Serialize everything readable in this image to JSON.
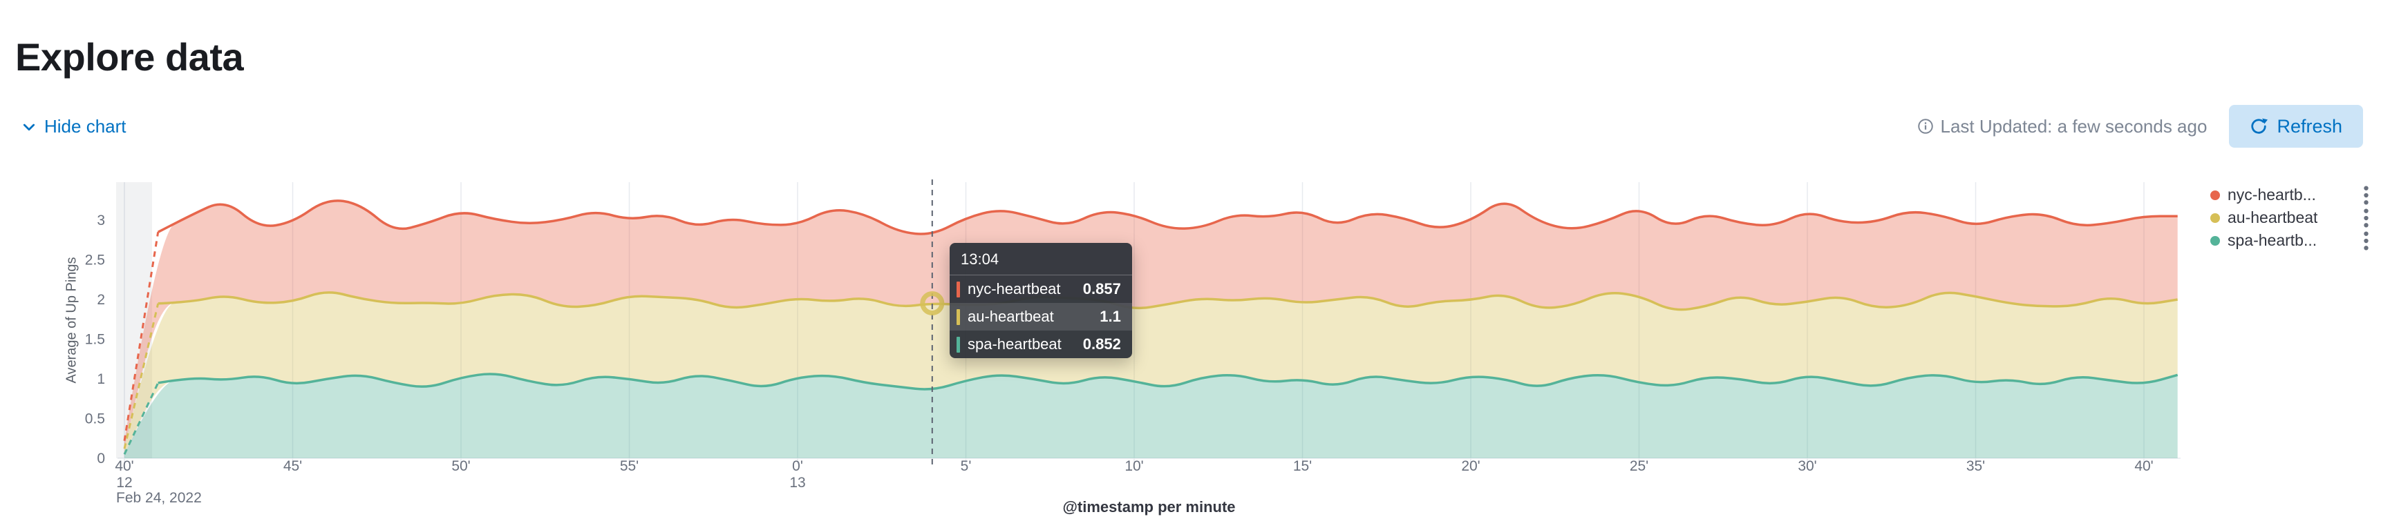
{
  "page": {
    "title": "Explore data"
  },
  "toolbar": {
    "hide_chart_label": "Hide chart",
    "last_updated": "Last Updated: a few seconds ago",
    "refresh_label": "Refresh"
  },
  "legend": {
    "position": "right",
    "items": [
      {
        "label": "nyc-heartb...",
        "color": "#e7664c"
      },
      {
        "label": "au-heartbeat",
        "color": "#d6bf57"
      },
      {
        "label": "spa-heartb...",
        "color": "#54b399"
      }
    ]
  },
  "tooltip": {
    "header": "13:04",
    "rows": [
      {
        "label": "nyc-heartbeat",
        "value": "0.857",
        "color": "#e7664c",
        "highlight": false
      },
      {
        "label": "au-heartbeat",
        "value": "1.1",
        "color": "#d6bf57",
        "highlight": true
      },
      {
        "label": "spa-heartbeat",
        "value": "0.852",
        "color": "#54b399",
        "highlight": false
      }
    ]
  },
  "chart_data": {
    "type": "area",
    "stacked": true,
    "title": "",
    "xlabel": "@timestamp per minute",
    "ylabel": "Average of Up Pings",
    "x_start": "12:40",
    "x_interval": "1 minute",
    "date": "Feb 24, 2022",
    "ylim": [
      0,
      3.478
    ],
    "y_ticks": [
      0,
      0.5,
      1,
      1.5,
      2,
      2.5,
      3
    ],
    "grid": "vertical",
    "legend_position": "right",
    "crosshair_time": "13:04",
    "crosshair_minute_index": 24,
    "hover_marker": {
      "minute_index": 24,
      "series": "au-heartbeat"
    },
    "partial_bucket_minute": 0,
    "x_ticks": [
      {
        "m": 0,
        "label": "40'",
        "hour": "12",
        "date": "Feb 24, 2022"
      },
      {
        "m": 5,
        "label": "45'"
      },
      {
        "m": 10,
        "label": "50'"
      },
      {
        "m": 15,
        "label": "55'"
      },
      {
        "m": 20,
        "label": "0'",
        "hour": "13"
      },
      {
        "m": 25,
        "label": "5'"
      },
      {
        "m": 30,
        "label": "10'"
      },
      {
        "m": 35,
        "label": "15'"
      },
      {
        "m": 40,
        "label": "20'"
      },
      {
        "m": 45,
        "label": "25'"
      },
      {
        "m": 50,
        "label": "30'"
      },
      {
        "m": 55,
        "label": "35'"
      },
      {
        "m": 60,
        "label": "40'"
      }
    ],
    "series": [
      {
        "name": "spa-heartbeat",
        "color": "#54b399",
        "fill": "rgba(84,179,153,0.35)",
        "values": [
          0.05,
          0.95,
          1.02,
          0.98,
          1.05,
          0.92,
          1.0,
          1.06,
          0.95,
          0.88,
          1.02,
          1.08,
          0.97,
          0.9,
          1.04,
          1.0,
          0.93,
          1.06,
          0.98,
          0.88,
          1.02,
          1.05,
          0.95,
          0.9,
          0.852,
          0.98,
          1.06,
          1.0,
          0.92,
          1.04,
          0.97,
          0.88,
          1.02,
          1.06,
          0.95,
          1.0,
          0.9,
          1.05,
          0.98,
          0.93,
          1.04,
          1.0,
          0.88,
          1.02,
          1.06,
          0.95,
          0.9,
          1.03,
          1.0,
          0.92,
          1.05,
          0.97,
          0.89,
          1.02,
          1.06,
          0.94,
          1.0,
          0.91,
          1.04,
          0.98,
          0.93,
          1.05
        ]
      },
      {
        "name": "au-heartbeat",
        "color": "#d6bf57",
        "fill": "rgba(214,191,87,0.35)",
        "values": [
          0.07,
          1.0,
          0.95,
          1.08,
          0.9,
          1.05,
          1.12,
          0.95,
          1.0,
          1.08,
          0.92,
          0.98,
          1.1,
          1.0,
          0.88,
          1.05,
          1.1,
          0.95,
          0.9,
          1.06,
          1.0,
          0.92,
          1.08,
          1.0,
          1.1,
          0.95,
          0.88,
          1.04,
          1.1,
          0.96,
          0.9,
          1.06,
          1.0,
          0.92,
          1.08,
          0.95,
          1.1,
          1.0,
          0.9,
          1.05,
          0.95,
          1.08,
          1.0,
          0.9,
          1.04,
          1.1,
          0.95,
          0.88,
          1.06,
          1.0,
          0.92,
          1.08,
          1.0,
          0.9,
          1.05,
          1.1,
          0.95,
          1.0,
          0.88,
          1.06,
          1.0,
          0.95
        ]
      },
      {
        "name": "nyc-heartbeat",
        "color": "#e7664c",
        "fill": "rgba(231,102,76,0.35)",
        "values": [
          0.1,
          0.9,
          1.1,
          1.2,
          0.95,
          1.0,
          1.15,
          1.2,
          0.9,
          1.0,
          1.18,
          0.95,
          0.88,
          1.1,
          1.2,
          0.95,
          1.05,
          0.9,
          1.15,
          1.0,
          0.92,
          1.18,
          1.05,
          0.95,
          0.857,
          1.1,
          1.2,
          1.0,
          0.9,
          1.12,
          1.2,
          0.95,
          0.88,
          1.1,
          1.0,
          1.18,
          0.92,
          1.05,
          1.15,
          0.9,
          1.0,
          1.2,
          1.1,
          0.95,
          0.88,
          1.12,
          1.05,
          1.18,
          0.9,
          1.0,
          1.15,
          0.92,
          1.08,
          1.2,
          0.95,
          0.88,
          1.1,
          1.18,
          1.0,
          0.92,
          1.12,
          1.05
        ]
      }
    ]
  }
}
